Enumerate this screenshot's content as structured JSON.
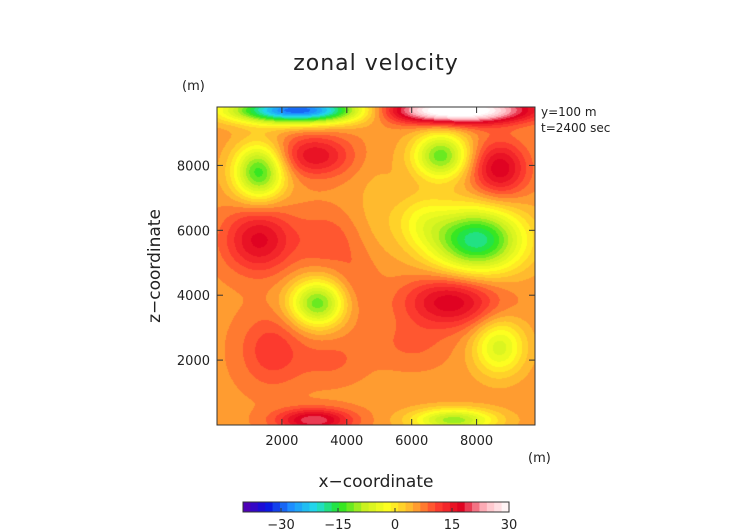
{
  "chart_data": {
    "type": "heatmap",
    "title": "zonal velocity",
    "xlabel": "x−coordinate",
    "ylabel": "z−coordinate",
    "x_unit": "(m)",
    "y_unit": "(m)",
    "annotations": [
      "y=100 m",
      "t=2400 sec"
    ],
    "xlim": [
      0,
      9800
    ],
    "ylim": [
      0,
      9800
    ],
    "x_ticks": [
      2000,
      4000,
      6000,
      8000
    ],
    "x_tick_labels": [
      "2000",
      "4000",
      "6000",
      "8000"
    ],
    "y_ticks": [
      2000,
      4000,
      6000,
      8000
    ],
    "y_tick_labels": [
      "2000",
      "4000",
      "6000",
      "8000"
    ],
    "colorbar": {
      "min": -40,
      "max": 30,
      "ticks": [
        -30,
        -15,
        0,
        15,
        30
      ],
      "tick_labels": [
        "−30",
        "−15",
        "0",
        "15",
        "30"
      ],
      "colors": [
        "#5a00b0",
        "#0a10e0",
        "#1e90ff",
        "#22dcea",
        "#22e622",
        "#c8f020",
        "#ffff20",
        "#ffb030",
        "#ff4030",
        "#e00020",
        "#ffb8c0",
        "#ffffff"
      ]
    },
    "base_value": 6,
    "features": [
      {
        "x": 1300,
        "z": 7800,
        "sx": 550,
        "sz": 600,
        "value": -20
      },
      {
        "x": 3000,
        "z": 8300,
        "sx": 800,
        "sz": 450,
        "value": 10
      },
      {
        "x": 1300,
        "z": 5700,
        "sx": 750,
        "sz": 700,
        "value": 11
      },
      {
        "x": 3100,
        "z": 3750,
        "sx": 600,
        "sz": 500,
        "value": -18
      },
      {
        "x": 1700,
        "z": 2300,
        "sx": 700,
        "sz": 800,
        "value": 6
      },
      {
        "x": 3500,
        "z": 2000,
        "sx": 700,
        "sz": 500,
        "value": 3
      },
      {
        "x": 3300,
        "z": 5700,
        "sx": 600,
        "sz": 600,
        "value": 4
      },
      {
        "x": 4900,
        "z": 6700,
        "sx": 500,
        "sz": 1200,
        "value": -2
      },
      {
        "x": 6900,
        "z": 8300,
        "sx": 600,
        "sz": 500,
        "value": -18
      },
      {
        "x": 8700,
        "z": 7900,
        "sx": 600,
        "sz": 600,
        "value": 12
      },
      {
        "x": 8000,
        "z": 5700,
        "sx": 1000,
        "sz": 700,
        "value": -24
      },
      {
        "x": 6300,
        "z": 6300,
        "sx": 600,
        "sz": 600,
        "value": -6
      },
      {
        "x": 7200,
        "z": 3800,
        "sx": 1000,
        "sz": 550,
        "value": 12
      },
      {
        "x": 8700,
        "z": 2400,
        "sx": 550,
        "sz": 600,
        "value": -12
      },
      {
        "x": 6000,
        "z": 2500,
        "sx": 800,
        "sz": 500,
        "value": 3
      },
      {
        "x": 4300,
        "z": 4300,
        "sx": 500,
        "sz": 1000,
        "value": 3
      },
      {
        "x": 2500,
        "z": 9700,
        "sx": 1400,
        "sz": 280,
        "value": -36
      },
      {
        "x": 7400,
        "z": 9700,
        "sx": 1500,
        "sz": 280,
        "value": 30
      },
      {
        "x": 3000,
        "z": 150,
        "sx": 800,
        "sz": 250,
        "value": 14
      },
      {
        "x": 7300,
        "z": 150,
        "sx": 900,
        "sz": 250,
        "value": -16
      }
    ]
  }
}
